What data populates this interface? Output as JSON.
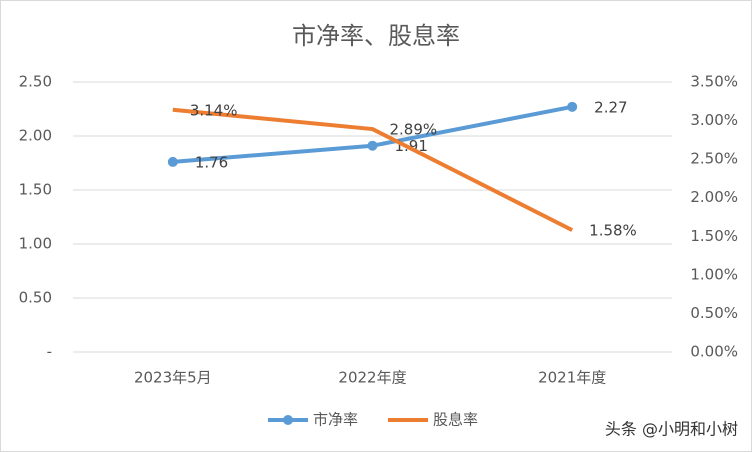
{
  "chart_data": {
    "type": "line",
    "title": "市净率、股息率",
    "categories": [
      "2023年5月",
      "2022年度",
      "2021年度"
    ],
    "series": [
      {
        "name": "市净率",
        "color": "#5b9bd5",
        "values": [
          1.76,
          1.91,
          2.27
        ],
        "markers": true
      },
      {
        "name": "股息率",
        "color": "#ed7d31",
        "values": [
          3.14,
          2.89,
          1.58
        ],
        "value_labels": [
          "3.14%",
          "2.89%",
          "1.58%"
        ],
        "axis": "y2",
        "markers": false
      }
    ],
    "ylim": [
      0,
      2.5
    ],
    "yticks": [
      {
        "value": 0,
        "label": "-"
      },
      {
        "value": 0.5,
        "label": "0.50"
      },
      {
        "value": 1,
        "label": "1.00"
      },
      {
        "value": 1.5,
        "label": "1.50"
      },
      {
        "value": 2,
        "label": "2.00"
      },
      {
        "value": 2.5,
        "label": "2.50"
      }
    ],
    "y2lim": [
      0,
      3.5
    ],
    "y2ticks": [
      {
        "value": 0,
        "label": "0.00%"
      },
      {
        "value": 0.5,
        "label": "0.50%"
      },
      {
        "value": 1,
        "label": "1.00%"
      },
      {
        "value": 1.5,
        "label": "1.50%"
      },
      {
        "value": 2,
        "label": "2.00%"
      },
      {
        "value": 2.5,
        "label": "2.50%"
      },
      {
        "value": 3,
        "label": "3.00%"
      },
      {
        "value": 3.5,
        "label": "3.50%"
      }
    ],
    "grid": true,
    "legend": "bottom",
    "watermark": "头条 @小明和小树"
  }
}
